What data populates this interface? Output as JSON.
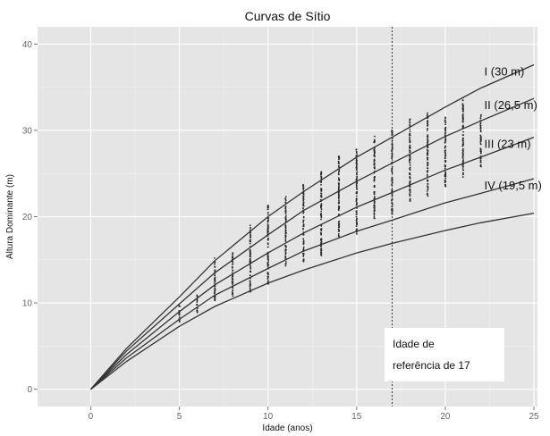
{
  "chart_data": {
    "type": "scatter",
    "title": "Curvas de Sítio",
    "xlabel": "Idade (anos)",
    "ylabel": "Altura Dominante (m)",
    "xlim": [
      -3,
      25.2
    ],
    "ylim": [
      -2,
      42
    ],
    "xticks": [
      0,
      5,
      10,
      15,
      20,
      25
    ],
    "yticks": [
      0,
      10,
      20,
      30,
      40
    ],
    "grid": true,
    "reference_age": 17,
    "curves": [
      {
        "label": "I (30 m)",
        "site_height": 30,
        "points": [
          [
            0,
            0
          ],
          [
            2,
            4.7
          ],
          [
            5,
            10.7
          ],
          [
            7,
            14.9
          ],
          [
            10,
            20.0
          ],
          [
            12,
            22.9
          ],
          [
            15,
            26.9
          ],
          [
            17,
            29.2
          ],
          [
            20,
            32.7
          ],
          [
            22,
            34.9
          ],
          [
            25,
            37.6
          ]
        ]
      },
      {
        "label": "II (26,5 m)",
        "site_height": 26.5,
        "points": [
          [
            0,
            0
          ],
          [
            2,
            4.4
          ],
          [
            5,
            9.9
          ],
          [
            7,
            13.5
          ],
          [
            10,
            17.9
          ],
          [
            12,
            20.7
          ],
          [
            15,
            24.1
          ],
          [
            17,
            26.2
          ],
          [
            20,
            29.3
          ],
          [
            22,
            31.1
          ],
          [
            25,
            33.7
          ]
        ]
      },
      {
        "label": "III (23 m)",
        "site_height": 23,
        "points": [
          [
            0,
            0
          ],
          [
            2,
            4.0
          ],
          [
            5,
            9.0
          ],
          [
            7,
            12.1
          ],
          [
            10,
            15.8
          ],
          [
            12,
            18.1
          ],
          [
            15,
            21.1
          ],
          [
            17,
            22.8
          ],
          [
            20,
            25.4
          ],
          [
            22,
            26.9
          ],
          [
            25,
            29.2
          ]
        ]
      },
      {
        "label": "IV (19,5 m)",
        "site_height": 19.5,
        "points": [
          [
            0,
            0
          ],
          [
            2,
            3.6
          ],
          [
            5,
            8.1
          ],
          [
            7,
            10.9
          ],
          [
            10,
            14.0
          ],
          [
            12,
            16.0
          ],
          [
            15,
            18.3
          ],
          [
            17,
            19.6
          ],
          [
            20,
            21.6
          ],
          [
            22,
            22.7
          ],
          [
            25,
            24.4
          ]
        ]
      },
      {
        "label": "",
        "site_height": null,
        "points": [
          [
            0,
            0
          ],
          [
            2,
            3.2
          ],
          [
            5,
            7.3
          ],
          [
            7,
            9.6
          ],
          [
            10,
            12.3
          ],
          [
            12,
            13.8
          ],
          [
            15,
            15.8
          ],
          [
            17,
            16.9
          ],
          [
            20,
            18.4
          ],
          [
            22,
            19.3
          ],
          [
            25,
            20.4
          ]
        ]
      }
    ],
    "scatter_columns": [
      {
        "x": 5,
        "y_min": 7.8,
        "y_max": 9.7
      },
      {
        "x": 6,
        "y_min": 8.9,
        "y_max": 10.9
      },
      {
        "x": 7,
        "y_min": 10.3,
        "y_max": 15.2
      },
      {
        "x": 8,
        "y_min": 10.8,
        "y_max": 15.8
      },
      {
        "x": 9,
        "y_min": 11.3,
        "y_max": 19.0
      },
      {
        "x": 10,
        "y_min": 12.2,
        "y_max": 21.3
      },
      {
        "x": 11,
        "y_min": 14.3,
        "y_max": 22.3
      },
      {
        "x": 12,
        "y_min": 14.8,
        "y_max": 23.7
      },
      {
        "x": 13,
        "y_min": 15.5,
        "y_max": 25.2
      },
      {
        "x": 14,
        "y_min": 17.7,
        "y_max": 27.0
      },
      {
        "x": 15,
        "y_min": 18.0,
        "y_max": 27.8
      },
      {
        "x": 16,
        "y_min": 19.8,
        "y_max": 29.3
      },
      {
        "x": 17,
        "y_min": 20.3,
        "y_max": 30.0
      },
      {
        "x": 18,
        "y_min": 21.8,
        "y_max": 31.3
      },
      {
        "x": 19,
        "y_min": 22.4,
        "y_max": 32.0
      },
      {
        "x": 20,
        "y_min": 23.5,
        "y_max": 31.5
      },
      {
        "x": 21,
        "y_min": 24.6,
        "y_max": 33.8
      },
      {
        "x": 22,
        "y_min": 25.8,
        "y_max": 31.8
      }
    ],
    "annotation": {
      "lines": [
        "Idade de",
        "referência de 17"
      ]
    }
  }
}
